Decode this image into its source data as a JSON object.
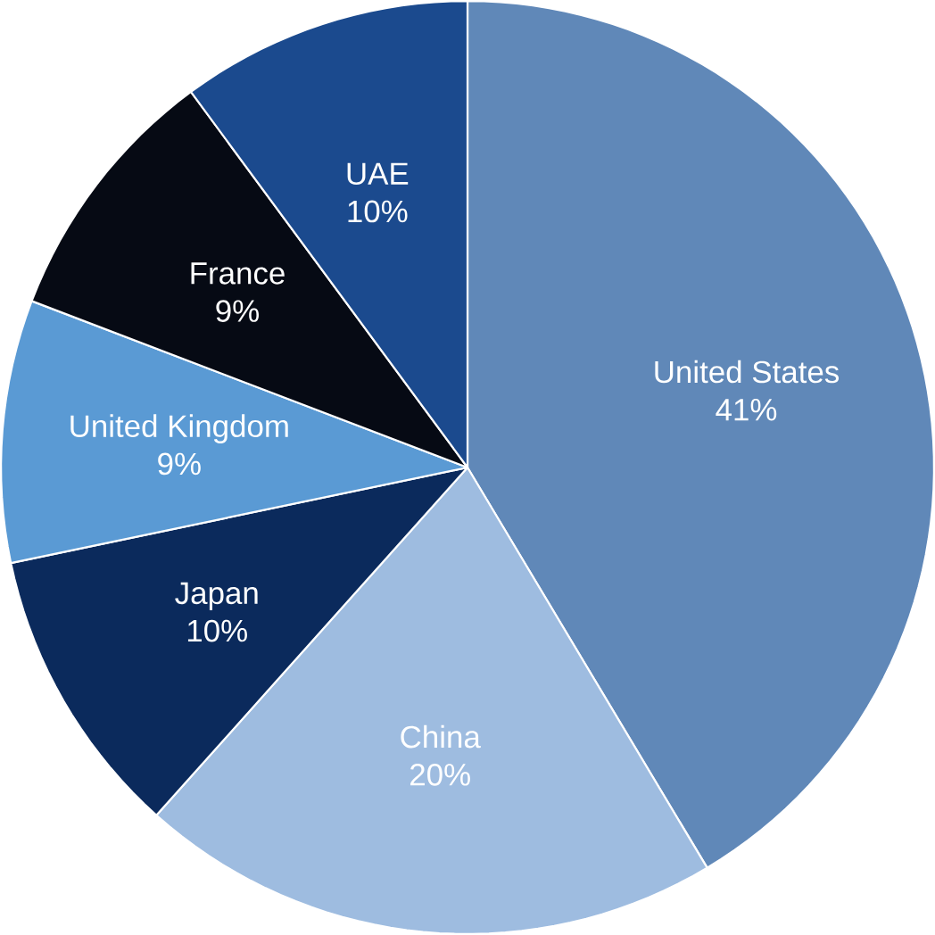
{
  "chart_data": {
    "type": "pie",
    "categories": [
      "United States",
      "China",
      "Japan",
      "United Kingdom",
      "France",
      "UAE"
    ],
    "values": [
      41,
      20,
      10,
      9,
      9,
      10
    ],
    "value_labels": [
      "41%",
      "20%",
      "10%",
      "9%",
      "9%",
      "10%"
    ],
    "colors": [
      "#6088b8",
      "#9ebce0",
      "#0b2a5c",
      "#5a9ad4",
      "#060a14",
      "#1b4a8e"
    ]
  }
}
